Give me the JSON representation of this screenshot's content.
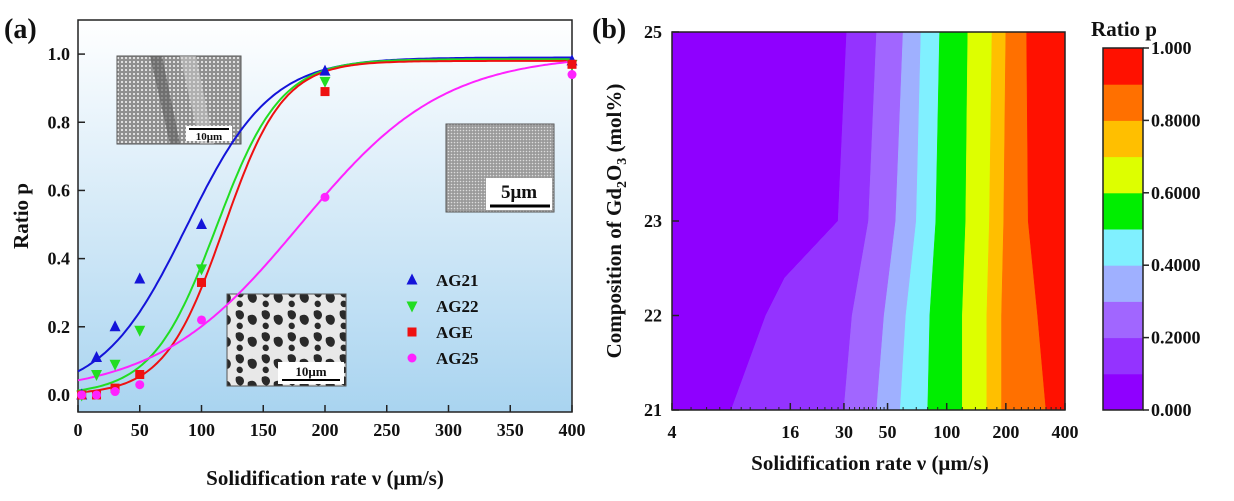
{
  "chart_data": [
    {
      "panel_label": "(a)",
      "type": "scatter",
      "xlabel": "Solidification rate ν (μm/s)",
      "ylabel": "Ratio p",
      "xlim": [
        0,
        400
      ],
      "ylim": [
        -0.05,
        1.1
      ],
      "x_ticks": [
        0,
        50,
        100,
        150,
        200,
        250,
        300,
        350,
        400
      ],
      "y_ticks": [
        0.0,
        0.2,
        0.4,
        0.6,
        0.8,
        1.0
      ],
      "y_tick_labels": [
        "0.0",
        "0.2",
        "0.4",
        "0.6",
        "0.8",
        "1.0"
      ],
      "legend_position": "right-middle",
      "series": [
        {
          "name": "AG21",
          "color": "#1414d9",
          "marker": "triangle-up",
          "x": [
            3,
            15,
            30,
            50,
            100,
            200,
            400
          ],
          "y": [
            0.0,
            0.11,
            0.2,
            0.34,
            0.5,
            0.95,
            0.98
          ],
          "fit": {
            "type": "logistic",
            "max": 0.99,
            "midpoint": 88,
            "width": 34
          }
        },
        {
          "name": "AG22",
          "color": "#22dd22",
          "marker": "triangle-down",
          "x": [
            3,
            15,
            30,
            50,
            100,
            200,
            400
          ],
          "y": [
            0.0,
            0.06,
            0.09,
            0.19,
            0.37,
            0.92,
            0.97
          ],
          "fit": {
            "type": "logistic",
            "max": 0.985,
            "midpoint": 112,
            "width": 26
          }
        },
        {
          "name": "AGE",
          "color": "#ee1111",
          "marker": "square",
          "x": [
            3,
            15,
            30,
            50,
            100,
            200,
            400
          ],
          "y": [
            0.0,
            0.0,
            0.02,
            0.06,
            0.33,
            0.89,
            0.97
          ],
          "fit": {
            "type": "logistic",
            "max": 0.98,
            "midpoint": 118,
            "width": 24
          }
        },
        {
          "name": "AG25",
          "color": "#ff22ff",
          "marker": "circle",
          "x": [
            3,
            15,
            30,
            50,
            100,
            200,
            400
          ],
          "y": [
            0.0,
            0.0,
            0.01,
            0.03,
            0.22,
            0.58,
            0.94
          ],
          "fit": {
            "type": "logistic",
            "max": 1.0,
            "midpoint": 180,
            "width": 58
          }
        }
      ],
      "inset_scale_labels": [
        "10μm",
        "5μm",
        "10μm"
      ]
    },
    {
      "panel_label": "(b)",
      "type": "heatmap",
      "xlabel": "Solidification rate ν (μm/s)",
      "ylabel": "Composition of Gd2O3 (mol%)",
      "x_scale": "log",
      "x_ticks": [
        4,
        16,
        30,
        50,
        100,
        200,
        400
      ],
      "y_ticks": [
        21,
        22,
        23,
        25
      ],
      "colorbar": {
        "title": "Ratio p",
        "ticks": [
          0.0,
          0.2,
          0.4,
          0.6,
          0.8,
          1.0
        ],
        "tick_labels": [
          "0.000",
          "0.2000",
          "0.4000",
          "0.6000",
          "0.8000",
          "1.000"
        ],
        "colors": [
          "#8f00ff",
          "#9433ff",
          "#a166ff",
          "#9fb0ff",
          "#80f0ff",
          "#00ee00",
          "#ddff00",
          "#ffbf00",
          "#ff7000",
          "#ff1100"
        ]
      },
      "contour_levels": [
        0.1,
        0.2,
        0.3,
        0.4,
        0.5,
        0.6,
        0.7,
        0.8,
        0.9
      ],
      "contour_boundaries": [
        {
          "level": 0.1,
          "points": [
            [
              8,
              21
            ],
            [
              12,
              22
            ],
            [
              15,
              22.4
            ],
            [
              28,
              23
            ],
            [
              31,
              25
            ]
          ]
        },
        {
          "level": 0.2,
          "points": [
            [
              30,
              21
            ],
            [
              33,
              22
            ],
            [
              40,
              23
            ],
            [
              44,
              25
            ]
          ]
        },
        {
          "level": 0.3,
          "points": [
            [
              44,
              21
            ],
            [
              48,
              22
            ],
            [
              55,
              23
            ],
            [
              60,
              25
            ]
          ]
        },
        {
          "level": 0.4,
          "points": [
            [
              58,
              21
            ],
            [
              62,
              22
            ],
            [
              70,
              23
            ],
            [
              74,
              25
            ]
          ]
        },
        {
          "level": 0.5,
          "points": [
            [
              80,
              21
            ],
            [
              82,
              22
            ],
            [
              88,
              23
            ],
            [
              92,
              25
            ]
          ]
        },
        {
          "level": 0.6,
          "points": [
            [
              120,
              21
            ],
            [
              120,
              22
            ],
            [
              125,
              23
            ],
            [
              128,
              25
            ]
          ]
        },
        {
          "level": 0.7,
          "points": [
            [
              160,
              21
            ],
            [
              160,
              22
            ],
            [
              165,
              23
            ],
            [
              170,
              25
            ]
          ]
        },
        {
          "level": 0.8,
          "points": [
            [
              190,
              21
            ],
            [
              190,
              22
            ],
            [
              195,
              23
            ],
            [
              200,
              25
            ]
          ]
        },
        {
          "level": 0.9,
          "points": [
            [
              320,
              21
            ],
            [
              290,
              22
            ],
            [
              260,
              23
            ],
            [
              255,
              25
            ]
          ]
        }
      ]
    }
  ]
}
